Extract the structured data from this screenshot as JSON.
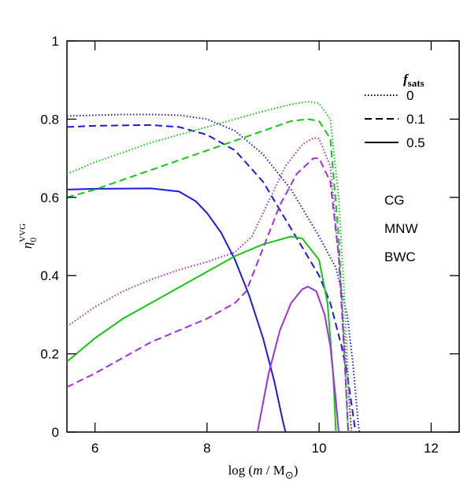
{
  "chart_data": {
    "type": "line",
    "xlabel_parts": [
      "log (",
      "m",
      " / M",
      "⊙",
      ")"
    ],
    "ylabel": {
      "symbol": "η",
      "sub": "0",
      "sup": "VVG"
    },
    "xlim": [
      5.5,
      12.5
    ],
    "ylim": [
      0,
      1
    ],
    "xticks": [
      6,
      8,
      10,
      12
    ],
    "yticks": [
      0,
      0.2,
      0.4,
      0.6,
      0.8,
      1
    ],
    "legend_fsats": {
      "symbol": "f",
      "sub": "sats",
      "entries": [
        {
          "label": "0",
          "dash": "dotted"
        },
        {
          "label": "0.1",
          "dash": "dashed"
        },
        {
          "label": "0.5",
          "dash": "solid"
        }
      ]
    },
    "legend_models": [
      {
        "name": "CG",
        "color": "#1a1aeb"
      },
      {
        "name": "MNW",
        "color": "#14c814"
      },
      {
        "name": "BWC",
        "color": "#a030e0"
      }
    ],
    "series": [
      {
        "color": "#1a1aeb",
        "dash": "solid",
        "x": [
          5.5,
          6,
          7,
          7.5,
          7.8,
          8,
          8.25,
          8.5,
          8.75,
          9,
          9.2,
          9.35,
          9.4
        ],
        "values": [
          0.62,
          0.622,
          0.623,
          0.615,
          0.59,
          0.56,
          0.51,
          0.44,
          0.35,
          0.24,
          0.13,
          0.03,
          0
        ]
      },
      {
        "color": "#1a1aeb",
        "dash": "dashed",
        "x": [
          5.5,
          6,
          7,
          7.5,
          8,
          8.5,
          9,
          9.5,
          10,
          10.2,
          10.4,
          10.5,
          10.6,
          10.65
        ],
        "values": [
          0.78,
          0.783,
          0.785,
          0.78,
          0.76,
          0.72,
          0.64,
          0.52,
          0.4,
          0.33,
          0.22,
          0.15,
          0.05,
          0
        ]
      },
      {
        "color": "#1a1aeb",
        "dash": "dotted",
        "x": [
          5.5,
          6.5,
          7,
          7.5,
          8,
          8.5,
          9,
          9.5,
          10,
          10.3,
          10.5,
          10.6,
          10.7,
          10.72
        ],
        "values": [
          0.808,
          0.812,
          0.812,
          0.81,
          0.8,
          0.77,
          0.71,
          0.62,
          0.5,
          0.42,
          0.3,
          0.18,
          0.02,
          0
        ]
      },
      {
        "color": "#14c814",
        "dash": "solid",
        "x": [
          5.5,
          6,
          6.5,
          7,
          7.5,
          8,
          8.5,
          9,
          9.5,
          9.7,
          10,
          10.15,
          10.25,
          10.3
        ],
        "values": [
          0.18,
          0.24,
          0.29,
          0.33,
          0.37,
          0.41,
          0.45,
          0.48,
          0.5,
          0.495,
          0.44,
          0.33,
          0.15,
          0
        ]
      },
      {
        "color": "#14c814",
        "dash": "dashed",
        "x": [
          5.5,
          6,
          6.5,
          7,
          7.5,
          8,
          8.5,
          9,
          9.5,
          9.8,
          10,
          10.2,
          10.35,
          10.45,
          10.52
        ],
        "values": [
          0.6,
          0.62,
          0.645,
          0.67,
          0.695,
          0.72,
          0.745,
          0.77,
          0.795,
          0.8,
          0.795,
          0.75,
          0.5,
          0.2,
          0
        ]
      },
      {
        "color": "#14c814",
        "dash": "dotted",
        "x": [
          5.5,
          6,
          6.5,
          7,
          7.5,
          8,
          8.5,
          9,
          9.5,
          9.8,
          10,
          10.2,
          10.35,
          10.45,
          10.55,
          10.58
        ],
        "values": [
          0.66,
          0.69,
          0.715,
          0.74,
          0.76,
          0.78,
          0.8,
          0.82,
          0.838,
          0.845,
          0.84,
          0.8,
          0.6,
          0.35,
          0.05,
          0
        ]
      },
      {
        "color": "#a030e0",
        "dash": "solid",
        "x": [
          8.9,
          9.1,
          9.3,
          9.5,
          9.7,
          9.8,
          9.95,
          10.1,
          10.2,
          10.3,
          10.35
        ],
        "values": [
          0,
          0.15,
          0.26,
          0.33,
          0.365,
          0.372,
          0.36,
          0.3,
          0.22,
          0.08,
          0
        ]
      },
      {
        "color": "#a030e0",
        "dash": "dashed",
        "x": [
          5.5,
          6,
          6.5,
          7,
          7.5,
          8,
          8.5,
          8.7,
          9,
          9.3,
          9.6,
          9.9,
          10,
          10.2,
          10.35,
          10.45,
          10.52
        ],
        "values": [
          0.115,
          0.15,
          0.19,
          0.23,
          0.26,
          0.29,
          0.33,
          0.36,
          0.47,
          0.58,
          0.66,
          0.7,
          0.7,
          0.64,
          0.45,
          0.2,
          0
        ]
      },
      {
        "color": "#a030e0",
        "dash": "dotted",
        "x": [
          5.5,
          6,
          6.5,
          7,
          7.5,
          8,
          8.5,
          8.8,
          9.1,
          9.4,
          9.7,
          9.9,
          10,
          10.2,
          10.35,
          10.5,
          10.58
        ],
        "values": [
          0.27,
          0.32,
          0.36,
          0.39,
          0.415,
          0.435,
          0.46,
          0.5,
          0.59,
          0.68,
          0.735,
          0.752,
          0.75,
          0.68,
          0.45,
          0.15,
          0
        ]
      }
    ]
  }
}
